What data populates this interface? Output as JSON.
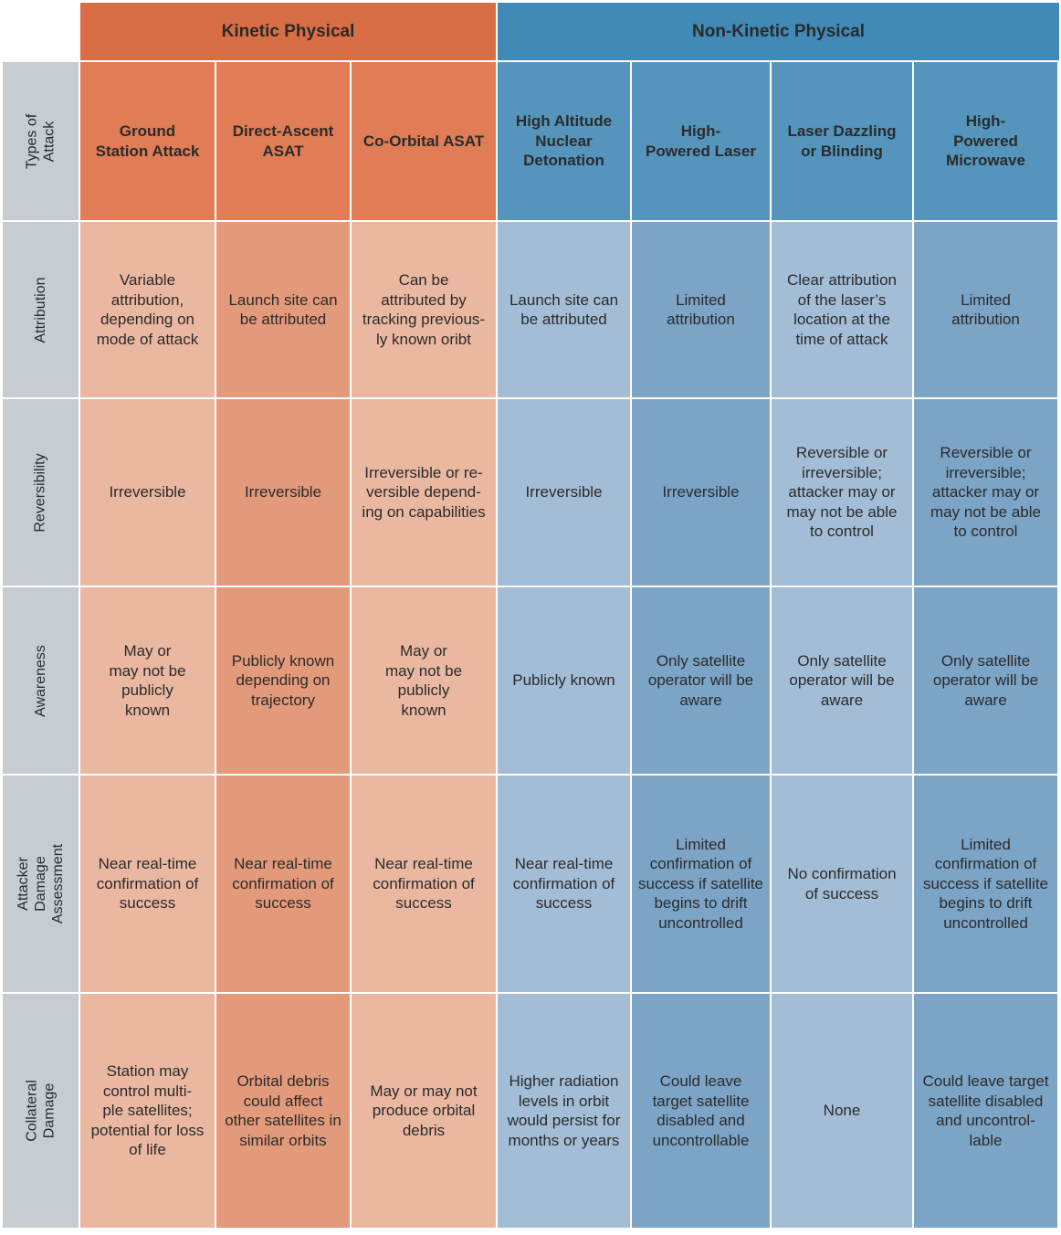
{
  "colors": {
    "kinetic_group": "#d96e44",
    "kinetic_header": "#e07c56",
    "kinetic_light": "#eab8a1",
    "kinetic_mid": "#e39a7b",
    "nonkinetic_group": "#4189b6",
    "nonkinetic_header": "#5595bd",
    "nonkinetic_light": "#a3bdd6",
    "nonkinetic_mid": "#7ba4c6",
    "row_label": "#c6ccd2"
  },
  "groups": [
    {
      "label": "Kinetic Physical",
      "span": [
        0,
        3
      ]
    },
    {
      "label": "Non-Kinetic Physical",
      "span": [
        3,
        7
      ]
    }
  ],
  "header_row_label": "Types of Attack",
  "columns": [
    "Ground\nStation Attack",
    "Direct-Ascent\nASAT",
    "Co-Orbital ASAT",
    "High Altitude\nNuclear\nDetonation",
    "High-\nPowered Laser",
    "Laser Dazzling\nor Blinding",
    "High-\nPowered\nMicrowave"
  ],
  "rows": [
    {
      "label": "Attribution",
      "cells": [
        "Variable\nattribution,\ndepending on\nmode of attack",
        "Launch site can\nbe attributed",
        "Can be\nattributed by\ntracking previous-\nly known oribt",
        "Launch site can\nbe attributed",
        "Limited\nattribution",
        "Clear attribution\nof the laser’s\nlocation at the\ntime of attack",
        "Limited\nattribution"
      ]
    },
    {
      "label": "Reversibility",
      "cells": [
        "Irreversible",
        "Irreversible",
        "Irreversible or re-\nversible depend-\ning on capabilities",
        "Irreversible",
        "Irreversible",
        "Reversible or\nirreversible;\nattacker may or\nmay not be able\nto control",
        "Reversible or\nirreversible;\nattacker may or\nmay not be able\nto control"
      ]
    },
    {
      "label": "Awareness",
      "cells": [
        "May or\nmay not be\npublicly\nknown",
        "Publicly known\ndepending on\ntrajectory",
        "May or\nmay not be\npublicly\nknown",
        "Publicly known",
        "Only satellite\noperator will be\naware",
        "Only satellite\noperator will be\naware",
        "Only satellite\noperator will be\naware"
      ]
    },
    {
      "label": "Attacker Damage\nAssessment",
      "cells": [
        "Near real-time\nconfirmation of\nsuccess",
        "Near real-time\nconfirmation of\nsuccess",
        "Near real-time\nconfirmation of\nsuccess",
        "Near real-time\nconfirmation of\nsuccess",
        "Limited\nconfirmation of\nsuccess if satellite\nbegins to drift\nuncontrolled",
        "No confirmation\nof success",
        "Limited\nconfirmation of\nsuccess if satellite\nbegins to drift\nuncontrolled"
      ]
    },
    {
      "label": "Collateral Damage",
      "cells": [
        "Station may\ncontrol multi-\nple satellites;\npotential for loss\nof life",
        "Orbital debris\ncould affect\nother satellites in\nsimilar orbits",
        "May or may not\nproduce orbital\ndebris",
        "Higher radiation\nlevels in orbit\nwould persist for\nmonths or years",
        "Could leave\ntarget satellite\ndisabled and\nuncontrollable",
        "None",
        "Could leave target\nsatellite disabled\nand uncontrol-\nlable"
      ]
    }
  ]
}
